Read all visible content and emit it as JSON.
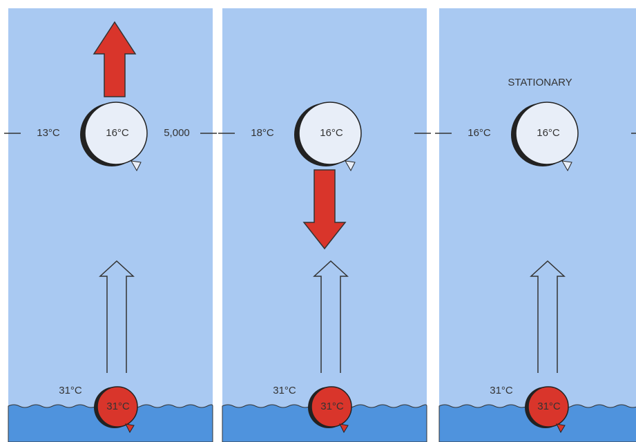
{
  "panels": [
    {
      "ambient": "13°C",
      "balloon": "16°C",
      "altitude": "5,000",
      "surface_temp": "31°C",
      "surface_balloon": "31°C"
    },
    {
      "ambient": "18°C",
      "balloon": "16°C",
      "surface_temp": "31°C",
      "surface_balloon": "31°C"
    },
    {
      "status": "STATIONARY",
      "ambient": "16°C",
      "balloon": "16°C",
      "surface_temp": "31°C",
      "surface_balloon": "31°C"
    }
  ]
}
